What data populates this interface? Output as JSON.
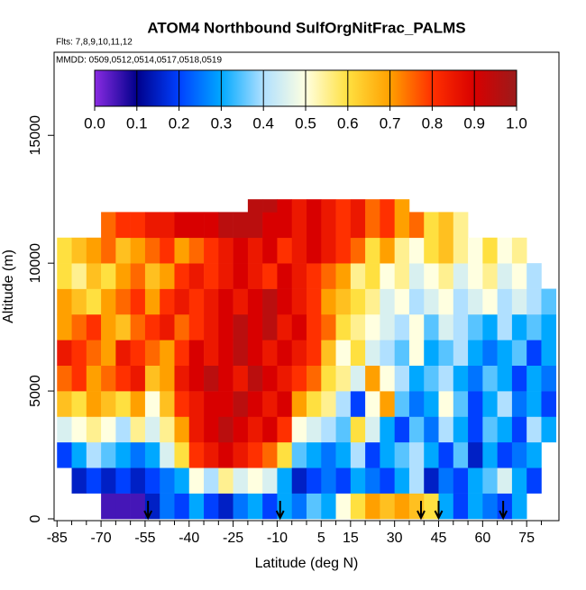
{
  "chart_data": {
    "type": "heatmap",
    "title": "ATOM4 Northbound SulfOrgNitFrac_PALMS",
    "subtitle": "Flts: 7,8,9,10,11,12",
    "annotation": "MMDD: 0509,0512,0514,0517,0518,0519",
    "x_label": "Latitude (deg N)",
    "y_label": "Altitude (m)",
    "xlim": [
      -86,
      86
    ],
    "ylim": [
      0,
      18250
    ],
    "xticks": [
      -85,
      -70,
      -55,
      -40,
      -25,
      -10,
      5,
      15,
      30,
      45,
      60,
      75
    ],
    "xticks_minor": [
      -80,
      -75,
      -65,
      -60,
      -50,
      -45,
      -35,
      -30,
      -20,
      -15,
      -5,
      0,
      10,
      20,
      25,
      35,
      40,
      50,
      55,
      65,
      70,
      80
    ],
    "yticks": [
      0,
      5000,
      10000,
      15000
    ],
    "lat_edges": [
      -85,
      -80,
      -75,
      -70,
      -65,
      -60,
      -55,
      -50,
      -45,
      -40,
      -35,
      -30,
      -25,
      -20,
      -15,
      -10,
      -5,
      0,
      5,
      10,
      15,
      20,
      25,
      30,
      35,
      40,
      45,
      50,
      55,
      60,
      65,
      70,
      75,
      80,
      85
    ],
    "alt_edges": [
      0,
      1000,
      2000,
      3000,
      4000,
      5000,
      6000,
      7000,
      8000,
      9000,
      10000,
      11000,
      12000,
      12500
    ],
    "z": [
      [
        null,
        null,
        null,
        0.05,
        0.05,
        0.05,
        0.15,
        0.25,
        0.2,
        0.3,
        0.2,
        0.15,
        0.25,
        0.3,
        0.2,
        0.3,
        0.25,
        0.35,
        0.3,
        0.5,
        0.6,
        0.7,
        0.65,
        0.7,
        0.65,
        0.6,
        0.3,
        0.2,
        0.3,
        0.25,
        0.2,
        0.3,
        null,
        null
      ],
      [
        null,
        0.15,
        0.2,
        0.15,
        0.2,
        0.15,
        0.2,
        0.25,
        0.3,
        0.5,
        0.4,
        0.55,
        0.45,
        0.5,
        0.45,
        0.3,
        0.15,
        0.2,
        0.25,
        0.2,
        0.3,
        0.25,
        0.2,
        0.3,
        0.4,
        0.15,
        0.25,
        0.2,
        0.3,
        0.35,
        0.45,
        0.3,
        0.2,
        null
      ],
      [
        0.2,
        0.3,
        0.4,
        0.35,
        0.3,
        0.25,
        0.3,
        0.45,
        0.6,
        0.8,
        0.85,
        0.9,
        0.85,
        0.8,
        0.75,
        0.6,
        0.35,
        0.3,
        0.25,
        0.3,
        0.4,
        0.2,
        0.3,
        0.35,
        0.4,
        0.3,
        0.2,
        0.35,
        0.15,
        0.3,
        0.2,
        0.25,
        0.3,
        null
      ],
      [
        0.45,
        0.5,
        0.55,
        0.5,
        0.4,
        0.55,
        0.45,
        0.55,
        0.7,
        0.85,
        0.9,
        0.95,
        0.9,
        0.85,
        0.9,
        0.8,
        0.5,
        0.45,
        0.4,
        0.35,
        0.6,
        0.45,
        0.3,
        0.2,
        0.35,
        0.25,
        0.4,
        0.3,
        0.2,
        0.35,
        0.3,
        0.2,
        0.4,
        0.3
      ],
      [
        0.65,
        0.6,
        0.7,
        0.65,
        0.6,
        0.7,
        0.5,
        0.65,
        0.8,
        0.85,
        0.9,
        0.9,
        0.95,
        0.9,
        0.85,
        0.9,
        0.7,
        0.6,
        0.55,
        0.4,
        0.2,
        0.5,
        0.7,
        0.35,
        0.25,
        0.3,
        0.5,
        0.35,
        0.2,
        0.3,
        0.4,
        0.25,
        0.3,
        0.2
      ],
      [
        0.75,
        0.8,
        0.7,
        0.75,
        0.8,
        0.85,
        0.65,
        0.7,
        0.85,
        0.9,
        0.95,
        0.9,
        0.85,
        0.95,
        0.9,
        0.85,
        0.8,
        0.75,
        0.6,
        0.55,
        0.45,
        0.7,
        0.5,
        0.4,
        0.3,
        0.35,
        0.4,
        0.3,
        0.25,
        0.35,
        0.3,
        0.2,
        0.3,
        0.25
      ],
      [
        0.85,
        0.8,
        0.75,
        0.7,
        0.85,
        0.8,
        0.75,
        0.7,
        0.8,
        0.9,
        0.85,
        0.9,
        0.95,
        0.9,
        0.85,
        0.9,
        0.85,
        0.8,
        0.65,
        0.5,
        0.6,
        0.45,
        0.4,
        0.35,
        0.5,
        0.3,
        0.35,
        0.4,
        0.3,
        0.25,
        0.3,
        0.35,
        0.2,
        0.3
      ],
      [
        0.7,
        0.75,
        0.8,
        0.7,
        0.65,
        0.75,
        0.8,
        0.85,
        0.75,
        0.8,
        0.85,
        0.9,
        0.95,
        0.9,
        0.95,
        0.85,
        0.9,
        0.8,
        0.75,
        0.6,
        0.55,
        0.5,
        0.45,
        0.4,
        0.5,
        0.35,
        0.45,
        0.4,
        0.35,
        0.3,
        0.4,
        0.3,
        0.35,
        0.3
      ],
      [
        0.7,
        0.65,
        0.6,
        0.7,
        0.75,
        0.8,
        0.7,
        0.8,
        0.85,
        0.8,
        0.85,
        0.9,
        0.85,
        0.9,
        0.95,
        0.9,
        0.85,
        0.8,
        0.7,
        0.65,
        0.6,
        0.55,
        0.45,
        0.5,
        0.4,
        0.45,
        0.5,
        0.4,
        0.45,
        0.5,
        0.4,
        0.45,
        0.4,
        0.35
      ],
      [
        0.6,
        0.55,
        0.65,
        0.6,
        0.7,
        0.75,
        0.65,
        0.7,
        0.8,
        0.85,
        0.8,
        0.85,
        0.9,
        0.85,
        0.8,
        0.9,
        0.85,
        0.8,
        0.75,
        0.7,
        0.55,
        0.6,
        0.5,
        0.55,
        0.45,
        0.5,
        0.55,
        0.45,
        0.5,
        0.55,
        0.45,
        0.5,
        0.4,
        null
      ],
      [
        0.6,
        0.65,
        0.7,
        0.75,
        0.65,
        0.7,
        0.75,
        0.8,
        0.7,
        0.75,
        0.8,
        0.85,
        0.9,
        0.85,
        0.9,
        0.8,
        0.85,
        0.9,
        0.85,
        0.8,
        0.75,
        0.6,
        0.7,
        0.55,
        0.5,
        0.6,
        0.65,
        0.55,
        0.5,
        0.6,
        0.5,
        0.55,
        null,
        null
      ],
      [
        null,
        null,
        null,
        0.75,
        0.8,
        0.8,
        0.85,
        0.85,
        0.9,
        0.9,
        0.9,
        0.95,
        0.95,
        0.95,
        0.9,
        0.9,
        0.85,
        0.9,
        0.85,
        0.8,
        0.85,
        0.75,
        0.8,
        0.7,
        0.75,
        0.6,
        0.65,
        0.55,
        null,
        null,
        null,
        null,
        null,
        null
      ],
      [
        null,
        null,
        null,
        null,
        null,
        null,
        null,
        null,
        null,
        null,
        null,
        null,
        null,
        0.95,
        0.95,
        0.9,
        0.85,
        0.9,
        0.85,
        0.8,
        0.85,
        0.75,
        0.8,
        0.7,
        null,
        null,
        null,
        null,
        null,
        null,
        null,
        null,
        null,
        null
      ]
    ],
    "arrows_lat": [
      -54,
      -9,
      39,
      45,
      67
    ],
    "colorbar": {
      "colors": [
        "#8a2be2",
        "#00008b",
        "#0040ff",
        "#00a8ff",
        "#b0e0ff",
        "#ffffe0",
        "#ffe040",
        "#ffa000",
        "#ff3000",
        "#d80000",
        "#9b1b1b"
      ],
      "ticks": [
        {
          "value": 0,
          "label": "0.0"
        },
        0.1,
        0.2,
        0.3,
        0.4,
        0.5,
        0.6,
        0.7,
        0.8,
        0.9,
        {
          "value": 1,
          "label": "1.0"
        }
      ]
    }
  }
}
